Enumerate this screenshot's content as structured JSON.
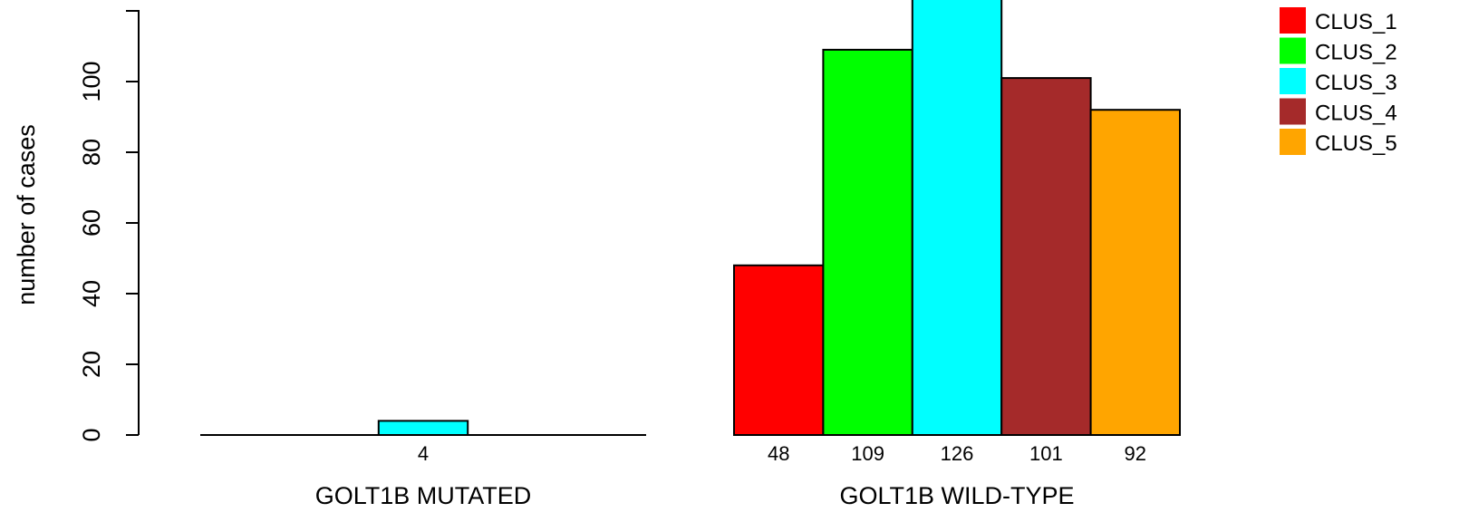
{
  "chart_data": {
    "type": "bar",
    "ylabel": "number of cases",
    "ylim": [
      0,
      120
    ],
    "yticks": [
      "0",
      "20",
      "40",
      "60",
      "80",
      "100"
    ],
    "series": [
      {
        "name": "CLUS_1",
        "color": "#ff0000"
      },
      {
        "name": "CLUS_2",
        "color": "#00ff00"
      },
      {
        "name": "CLUS_3",
        "color": "#00ffff"
      },
      {
        "name": "CLUS_4",
        "color": "#a52a2a"
      },
      {
        "name": "CLUS_5",
        "color": "#ffa500"
      }
    ],
    "groups": [
      {
        "label": "GOLT1B MUTATED",
        "values": [
          0,
          0,
          4,
          0,
          0
        ],
        "value_labels": [
          "",
          "",
          "4",
          "",
          ""
        ]
      },
      {
        "label": "GOLT1B WILD-TYPE",
        "values": [
          48,
          109,
          126,
          101,
          92
        ],
        "value_labels": [
          "48",
          "109",
          "126",
          "101",
          "92"
        ]
      }
    ],
    "legend_position": "top-right"
  }
}
